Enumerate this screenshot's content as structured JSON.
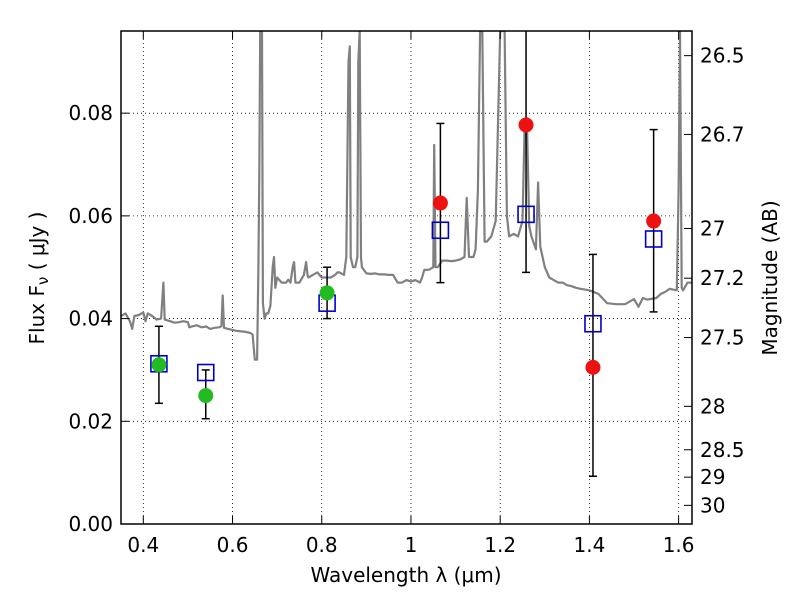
{
  "chart_data": {
    "type": "scatter",
    "xlabel": "Wavelength  λ (μm)",
    "ylabel": "Flux  F",
    "ylabel_sub": "ν",
    "ylabel_unit": " ( μJy )",
    "y2label": "Magnitude (AB)",
    "xlim": [
      0.35,
      1.63
    ],
    "ylim": [
      0.0,
      0.096
    ],
    "grid": true,
    "x_ticks": [
      0.4,
      0.6,
      0.8,
      1.0,
      1.2,
      1.4,
      1.6
    ],
    "x_tick_labels": [
      "0.4",
      "0.6",
      "0.8",
      "1",
      "1.2",
      "1.4",
      "1.6"
    ],
    "y_ticks": [
      0.0,
      0.02,
      0.04,
      0.06,
      0.08
    ],
    "y_tick_labels": [
      "0.00",
      "0.02",
      "0.04",
      "0.06",
      "0.08"
    ],
    "mag_ticks": [
      {
        "label": "26.5",
        "mag": 26.5
      },
      {
        "label": "26.7",
        "mag": 26.7
      },
      {
        "label": "27",
        "mag": 27.0
      },
      {
        "label": "27.2",
        "mag": 27.2
      },
      {
        "label": "27.5",
        "mag": 27.5
      },
      {
        "label": "28",
        "mag": 28.0
      },
      {
        "label": "28.5",
        "mag": 28.5
      },
      {
        "label": "29",
        "mag": 29.0
      },
      {
        "label": "30",
        "mag": 30.0
      }
    ],
    "colors": {
      "spectrum": "#808080",
      "optical": "#22bb22",
      "infrared": "#ee1111",
      "model": "#0000cc",
      "errorbar": "#000000"
    },
    "spectrum": [
      [
        0.35,
        0.0405
      ],
      [
        0.36,
        0.041
      ],
      [
        0.37,
        0.0395
      ],
      [
        0.375,
        0.038
      ],
      [
        0.38,
        0.0405
      ],
      [
        0.39,
        0.0407
      ],
      [
        0.4,
        0.0412
      ],
      [
        0.405,
        0.0395
      ],
      [
        0.41,
        0.041
      ],
      [
        0.42,
        0.0405
      ],
      [
        0.43,
        0.0398
      ],
      [
        0.44,
        0.04
      ],
      [
        0.445,
        0.047
      ],
      [
        0.448,
        0.0398
      ],
      [
        0.46,
        0.0395
      ],
      [
        0.47,
        0.0392
      ],
      [
        0.48,
        0.0393
      ],
      [
        0.49,
        0.0395
      ],
      [
        0.5,
        0.0393
      ],
      [
        0.503,
        0.0383
      ],
      [
        0.51,
        0.0385
      ],
      [
        0.52,
        0.0387
      ],
      [
        0.53,
        0.0383
      ],
      [
        0.538,
        0.0384
      ],
      [
        0.54,
        0.0385
      ],
      [
        0.55,
        0.038
      ],
      [
        0.56,
        0.0382
      ],
      [
        0.57,
        0.0383
      ],
      [
        0.575,
        0.0385
      ],
      [
        0.578,
        0.0445
      ],
      [
        0.581,
        0.0382
      ],
      [
        0.59,
        0.038
      ],
      [
        0.6,
        0.0378
      ],
      [
        0.61,
        0.0376
      ],
      [
        0.62,
        0.0375
      ],
      [
        0.63,
        0.0374
      ],
      [
        0.64,
        0.0372
      ],
      [
        0.645,
        0.0369
      ],
      [
        0.65,
        0.032
      ],
      [
        0.655,
        0.032
      ],
      [
        0.658,
        0.05
      ],
      [
        0.66,
        0.068
      ],
      [
        0.662,
        0.096
      ],
      [
        0.666,
        0.096
      ],
      [
        0.668,
        0.043
      ],
      [
        0.672,
        0.04
      ],
      [
        0.676,
        0.041
      ],
      [
        0.68,
        0.041
      ],
      [
        0.685,
        0.0425
      ],
      [
        0.69,
        0.05
      ],
      [
        0.693,
        0.052
      ],
      [
        0.696,
        0.046
      ],
      [
        0.7,
        0.048
      ],
      [
        0.71,
        0.047
      ],
      [
        0.72,
        0.047
      ],
      [
        0.725,
        0.0476
      ],
      [
        0.73,
        0.047
      ],
      [
        0.735,
        0.05
      ],
      [
        0.738,
        0.051
      ],
      [
        0.741,
        0.047
      ],
      [
        0.75,
        0.047
      ],
      [
        0.76,
        0.0485
      ],
      [
        0.765,
        0.051
      ],
      [
        0.768,
        0.0485
      ],
      [
        0.77,
        0.048
      ],
      [
        0.78,
        0.0485
      ],
      [
        0.79,
        0.049
      ],
      [
        0.8,
        0.048
      ],
      [
        0.81,
        0.048
      ],
      [
        0.82,
        0.048
      ],
      [
        0.83,
        0.0485
      ],
      [
        0.835,
        0.049
      ],
      [
        0.84,
        0.049
      ],
      [
        0.85,
        0.0485
      ],
      [
        0.855,
        0.052
      ],
      [
        0.86,
        0.09
      ],
      [
        0.863,
        0.093
      ],
      [
        0.865,
        0.052
      ],
      [
        0.87,
        0.05
      ],
      [
        0.875,
        0.05
      ],
      [
        0.88,
        0.052
      ],
      [
        0.882,
        0.09
      ],
      [
        0.885,
        0.096
      ],
      [
        0.888,
        0.052
      ],
      [
        0.89,
        0.05
      ],
      [
        0.9,
        0.0488
      ],
      [
        0.91,
        0.0487
      ],
      [
        0.92,
        0.0488
      ],
      [
        0.93,
        0.0486
      ],
      [
        0.94,
        0.0486
      ],
      [
        0.95,
        0.0485
      ],
      [
        0.96,
        0.0485
      ],
      [
        0.97,
        0.047
      ],
      [
        0.98,
        0.047
      ],
      [
        0.99,
        0.0475
      ],
      [
        1.0,
        0.0472
      ],
      [
        1.01,
        0.0475
      ],
      [
        1.02,
        0.047
      ],
      [
        1.025,
        0.048
      ],
      [
        1.03,
        0.0495
      ],
      [
        1.04,
        0.0495
      ],
      [
        1.05,
        0.05
      ],
      [
        1.052,
        0.0738
      ],
      [
        1.055,
        0.05
      ],
      [
        1.06,
        0.05
      ],
      [
        1.07,
        0.0513
      ],
      [
        1.08,
        0.0513
      ],
      [
        1.09,
        0.0512
      ],
      [
        1.1,
        0.0513
      ],
      [
        1.11,
        0.0515
      ],
      [
        1.12,
        0.052
      ],
      [
        1.125,
        0.0635
      ],
      [
        1.13,
        0.052
      ],
      [
        1.14,
        0.052
      ],
      [
        1.145,
        0.0535
      ],
      [
        1.15,
        0.065
      ],
      [
        1.155,
        0.096
      ],
      [
        1.16,
        0.096
      ],
      [
        1.165,
        0.055
      ],
      [
        1.17,
        0.055
      ],
      [
        1.18,
        0.056
      ],
      [
        1.19,
        0.059
      ],
      [
        1.2,
        0.096
      ],
      [
        1.21,
        0.096
      ],
      [
        1.215,
        0.06
      ],
      [
        1.22,
        0.056
      ],
      [
        1.23,
        0.0565
      ],
      [
        1.24,
        0.056
      ],
      [
        1.25,
        0.059
      ],
      [
        1.255,
        0.078
      ],
      [
        1.26,
        0.079
      ],
      [
        1.265,
        0.058
      ],
      [
        1.27,
        0.056
      ],
      [
        1.28,
        0.0535
      ],
      [
        1.285,
        0.0665
      ],
      [
        1.29,
        0.054
      ],
      [
        1.3,
        0.05
      ],
      [
        1.31,
        0.048
      ],
      [
        1.32,
        0.0475
      ],
      [
        1.33,
        0.047
      ],
      [
        1.34,
        0.047
      ],
      [
        1.35,
        0.0465
      ],
      [
        1.36,
        0.0463
      ],
      [
        1.37,
        0.046
      ],
      [
        1.38,
        0.0458
      ],
      [
        1.4,
        0.0455
      ],
      [
        1.42,
        0.0448
      ],
      [
        1.44,
        0.043
      ],
      [
        1.46,
        0.0428
      ],
      [
        1.48,
        0.0428
      ],
      [
        1.5,
        0.0438
      ],
      [
        1.51,
        0.0423
      ],
      [
        1.52,
        0.044
      ],
      [
        1.53,
        0.0437
      ],
      [
        1.55,
        0.044
      ],
      [
        1.56,
        0.0448
      ],
      [
        1.57,
        0.0452
      ],
      [
        1.58,
        0.0458
      ],
      [
        1.59,
        0.0456
      ],
      [
        1.596,
        0.0455
      ],
      [
        1.6,
        0.065
      ],
      [
        1.603,
        0.096
      ],
      [
        1.607,
        0.046
      ],
      [
        1.61,
        0.0455
      ],
      [
        1.62,
        0.047
      ],
      [
        1.63,
        0.047
      ]
    ],
    "optical_points": [
      {
        "x": 0.435,
        "y": 0.031,
        "yerr_low": 0.0235,
        "yerr_high": 0.0385
      },
      {
        "x": 0.54,
        "y": 0.025,
        "yerr_low": 0.0205,
        "yerr_high": 0.03
      },
      {
        "x": 0.812,
        "y": 0.045,
        "yerr_low": 0.04,
        "yerr_high": 0.05
      }
    ],
    "infrared_points": [
      {
        "x": 1.066,
        "y": 0.0625,
        "yerr_low": 0.047,
        "yerr_high": 0.078
      },
      {
        "x": 1.258,
        "y": 0.0777,
        "yerr_low": 0.049,
        "yerr_high": 0.096
      },
      {
        "x": 1.408,
        "y": 0.0305,
        "yerr_low": 0.0093,
        "yerr_high": 0.0525
      },
      {
        "x": 1.544,
        "y": 0.059,
        "yerr_low": 0.0413,
        "yerr_high": 0.0768
      }
    ],
    "model_points": [
      {
        "x": 0.435,
        "y": 0.0312
      },
      {
        "x": 0.54,
        "y": 0.0295
      },
      {
        "x": 0.812,
        "y": 0.043
      },
      {
        "x": 1.066,
        "y": 0.0572
      },
      {
        "x": 1.258,
        "y": 0.0603
      },
      {
        "x": 1.408,
        "y": 0.039
      },
      {
        "x": 1.544,
        "y": 0.0555
      }
    ]
  }
}
